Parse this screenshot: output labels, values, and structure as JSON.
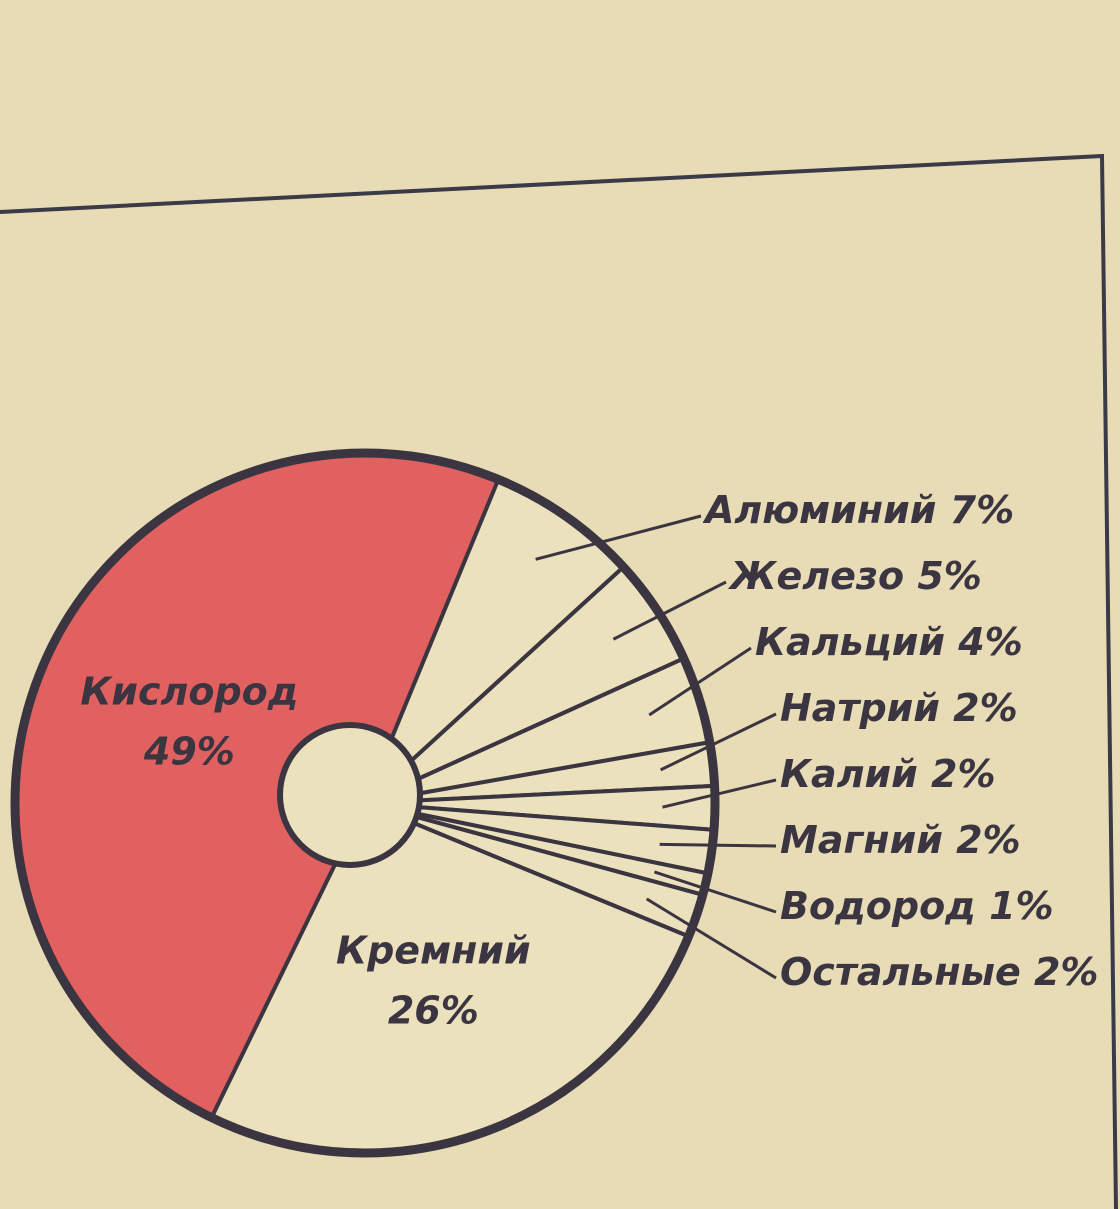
{
  "chart_data": {
    "type": "pie",
    "categories": [
      "Кислород",
      "Алюминий",
      "Железо",
      "Кальций",
      "Натрий",
      "Калий",
      "Магний",
      "Водород",
      "Остальные",
      "Кремний"
    ],
    "values": [
      49,
      7,
      5,
      4,
      2,
      2,
      2,
      1,
      2,
      26
    ],
    "value_labels": [
      "49%",
      "7%",
      "5%",
      "4%",
      "2%",
      "2%",
      "2%",
      "1%",
      "2%",
      "26%"
    ],
    "colors": [
      "#e0615f",
      "#ece1bd",
      "#ece1bd",
      "#ece1bd",
      "#ece1bd",
      "#ece1bd",
      "#ece1bd",
      "#ece1bd",
      "#ece1bd",
      "#ece1bd"
    ]
  }
}
